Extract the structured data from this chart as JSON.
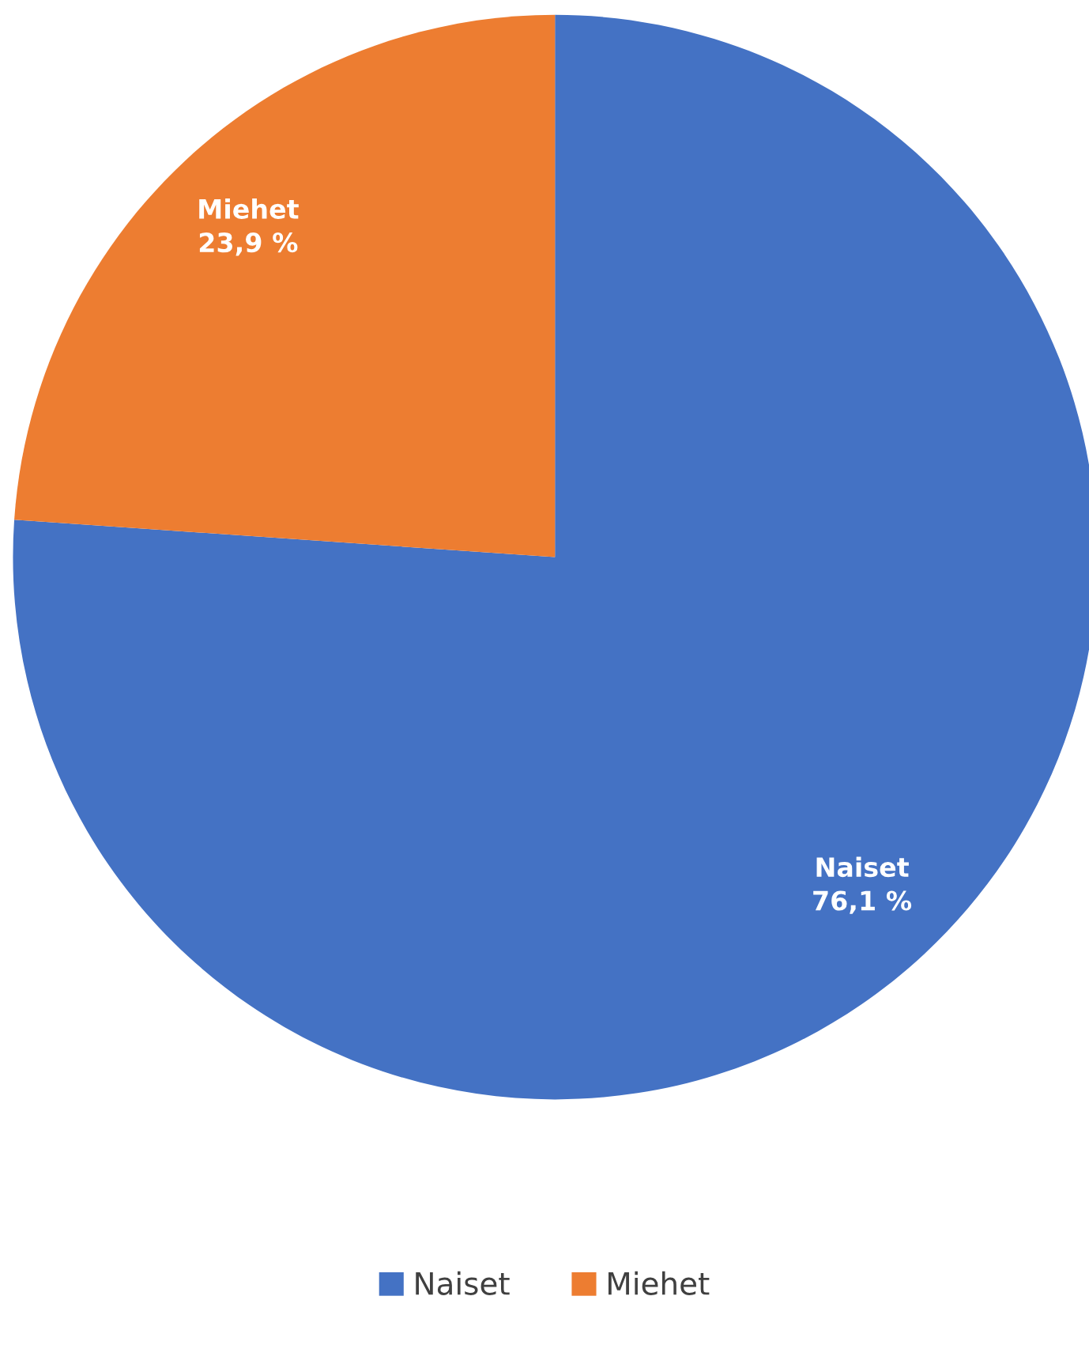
{
  "chart_data": {
    "type": "pie",
    "categories": [
      "Naiset",
      "Miehet"
    ],
    "values": [
      76.1,
      23.9
    ],
    "colors": [
      "#4472c4",
      "#ed7d31"
    ],
    "value_labels": [
      "76,1 %",
      "23,9 %"
    ],
    "legend": "bottom"
  }
}
